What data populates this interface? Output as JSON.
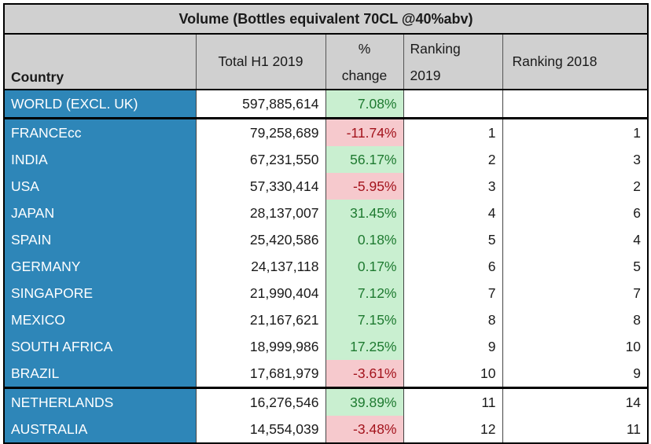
{
  "title": "Volume (Bottles equivalent 70CL @40%abv)",
  "headers": {
    "country": "Country",
    "total": "Total H1 2019",
    "pct_line1": "%",
    "pct_line2": "change",
    "rank2019_line1": "Ranking",
    "rank2019_line2": "2019",
    "rank2018": "Ranking 2018"
  },
  "world": {
    "country": "WORLD (EXCL. UK)",
    "total": "597,885,614",
    "change": "7.08%",
    "rank2019": "",
    "rank2018": ""
  },
  "rows": [
    {
      "country": "FRANCEcc",
      "total": "79,258,689",
      "change": "-11.74%",
      "rank2019": "1",
      "rank2018": "1"
    },
    {
      "country": "INDIA",
      "total": "67,231,550",
      "change": "56.17%",
      "rank2019": "2",
      "rank2018": "3"
    },
    {
      "country": "USA",
      "total": "57,330,414",
      "change": "-5.95%",
      "rank2019": "3",
      "rank2018": "2"
    },
    {
      "country": "JAPAN",
      "total": "28,137,007",
      "change": "31.45%",
      "rank2019": "4",
      "rank2018": "6"
    },
    {
      "country": "SPAIN",
      "total": "25,420,586",
      "change": "0.18%",
      "rank2019": "5",
      "rank2018": "4"
    },
    {
      "country": "GERMANY",
      "total": "24,137,118",
      "change": "0.17%",
      "rank2019": "6",
      "rank2018": "5"
    },
    {
      "country": "SINGAPORE",
      "total": "21,990,404",
      "change": "7.12%",
      "rank2019": "7",
      "rank2018": "7"
    },
    {
      "country": "MEXICO",
      "total": "21,167,621",
      "change": "7.15%",
      "rank2019": "8",
      "rank2018": "8"
    },
    {
      "country": "SOUTH AFRICA",
      "total": "18,999,986",
      "change": "17.25%",
      "rank2019": "9",
      "rank2018": "10"
    },
    {
      "country": "BRAZIL",
      "total": "17,681,979",
      "change": "-3.61%",
      "rank2019": "10",
      "rank2018": "9"
    },
    {
      "country": "NETHERLANDS",
      "total": "16,276,546",
      "change": "39.89%",
      "rank2019": "11",
      "rank2018": "14"
    },
    {
      "country": "AUSTRALIA",
      "total": "14,554,039",
      "change": "-3.48%",
      "rank2019": "12",
      "rank2018": "11"
    }
  ],
  "colors": {
    "country_bg": "#2e86b8",
    "header_bg": "#d0d0d0",
    "positive_bg": "#c9efd0",
    "positive_text": "#1e7a30",
    "negative_bg": "#f6c9cd",
    "negative_text": "#a3131c"
  }
}
